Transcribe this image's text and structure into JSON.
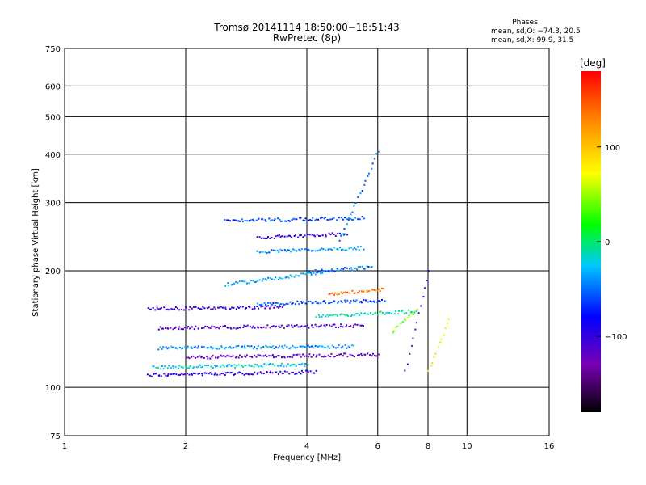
{
  "chart_data": {
    "type": "scatter",
    "title": "Tromsø 20141114 18:50:00−18:51:43",
    "subtitle": "RwPretec (8p)",
    "phase_info": {
      "header": "Phases",
      "line1": "mean, sd,O: −74.3, 20.5",
      "line2": "mean, sd,X:  99.9, 31.5"
    },
    "xlabel": "Frequency [MHz]",
    "ylabel": "Stationary phase Virtual Height [km]",
    "x_scale": "log",
    "y_scale": "log",
    "xlim": [
      1,
      16
    ],
    "ylim": [
      75,
      750
    ],
    "x_ticks": [
      1,
      2,
      4,
      6,
      8,
      10,
      16
    ],
    "x_tick_labels": [
      "1",
      "2",
      "4",
      "6",
      "8",
      "10",
      "16"
    ],
    "y_ticks": [
      75,
      100,
      200,
      300,
      400,
      500,
      600,
      750
    ],
    "y_tick_labels": [
      "75",
      "100",
      "200",
      "300",
      "400",
      "500",
      "600",
      "750"
    ],
    "grid": true,
    "colorbar": {
      "label": "[deg]",
      "range": [
        -180,
        180
      ],
      "ticks": [
        100,
        0,
        -100
      ],
      "tick_labels": [
        "100",
        "0",
        "−100"
      ],
      "colors": [
        "#000000",
        "#7a00b4",
        "#0000ff",
        "#00c8ff",
        "#00ff00",
        "#ffff00",
        "#ff8c00",
        "#ff0000"
      ]
    },
    "traces": [
      {
        "f_start": 1.6,
        "f_end": 4.2,
        "h_start": 108,
        "h_end": 110,
        "phase": -95
      },
      {
        "f_start": 1.65,
        "f_end": 4.0,
        "h_start": 113,
        "h_end": 115,
        "phase": -20
      },
      {
        "f_start": 2.0,
        "f_end": 6.0,
        "h_start": 120,
        "h_end": 122,
        "phase": -120
      },
      {
        "f_start": 1.7,
        "f_end": 5.2,
        "h_start": 127,
        "h_end": 128,
        "phase": -40
      },
      {
        "f_start": 1.7,
        "f_end": 5.5,
        "h_start": 143,
        "h_end": 145,
        "phase": -110
      },
      {
        "f_start": 1.6,
        "f_end": 3.5,
        "h_start": 160,
        "h_end": 162,
        "phase": -100
      },
      {
        "f_start": 3.0,
        "f_end": 6.2,
        "h_start": 165,
        "h_end": 168,
        "phase": -60
      },
      {
        "f_start": 4.2,
        "f_end": 7.5,
        "h_start": 153,
        "h_end": 158,
        "phase": -10
      },
      {
        "f_start": 4.5,
        "f_end": 6.2,
        "h_start": 175,
        "h_end": 180,
        "phase": 140
      },
      {
        "f_start": 2.5,
        "f_end": 4.5,
        "h_start": 185,
        "h_end": 200,
        "phase": -30
      },
      {
        "f_start": 4.0,
        "f_end": 5.8,
        "h_start": 200,
        "h_end": 205,
        "phase": -50
      },
      {
        "f_start": 3.0,
        "f_end": 5.5,
        "h_start": 225,
        "h_end": 230,
        "phase": -40
      },
      {
        "f_start": 3.0,
        "f_end": 5.0,
        "h_start": 245,
        "h_end": 250,
        "phase": -95
      },
      {
        "f_start": 2.5,
        "f_end": 5.5,
        "h_start": 270,
        "h_end": 275,
        "phase": -60
      },
      {
        "f_start": 4.8,
        "f_end": 6.0,
        "h_start": 240,
        "h_end": 410,
        "phase": -45
      },
      {
        "f_start": 6.5,
        "f_end": 7.5,
        "h_start": 140,
        "h_end": 160,
        "phase": 50
      },
      {
        "f_start": 7.0,
        "f_end": 8.0,
        "h_start": 110,
        "h_end": 200,
        "phase": -110
      },
      {
        "f_start": 8.0,
        "f_end": 9.0,
        "h_start": 110,
        "h_end": 150,
        "phase": 80
      }
    ]
  }
}
